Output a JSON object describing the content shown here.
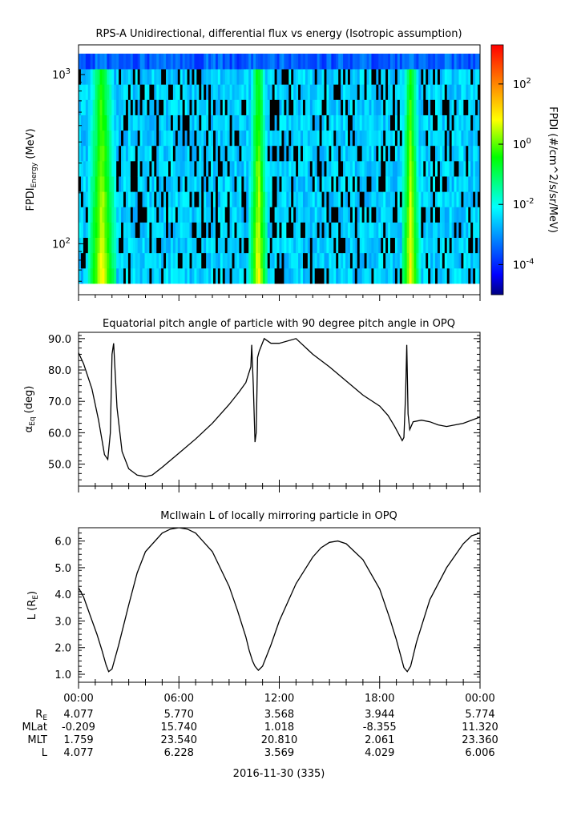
{
  "panel1": {
    "title": "RPS-A Unidirectional, differential flux vs energy (Isotropic assumption)",
    "ylabel_main": "FPDI",
    "ylabel_sub": "Energy",
    "ylabel_unit": "(MeV)",
    "colorbar_label": "FPDI (#/cm^2/s/sr/MeV)"
  },
  "panel2": {
    "title": "Equatorial pitch angle of particle with 90 degree pitch angle in OPQ",
    "ylabel_main": "α",
    "ylabel_sub": "Eq",
    "ylabel_unit": "(deg)"
  },
  "panel3": {
    "title": "McIlwain L of locally mirroring particle in OPQ",
    "ylabel_main": "L (R",
    "ylabel_sub": "E",
    "ylabel_unit": ")"
  },
  "footer": {
    "date_label": "2016-11-30 (335)",
    "row_labels": [
      {
        "main": "R",
        "sub": "E"
      },
      {
        "main": "MLat",
        "sub": ""
      },
      {
        "main": "MLT",
        "sub": ""
      },
      {
        "main": "L",
        "sub": ""
      }
    ],
    "columns": [
      {
        "time": "00:00",
        "values": [
          "4.077",
          "-0.209",
          "1.759",
          "4.077"
        ]
      },
      {
        "time": "06:00",
        "values": [
          "5.770",
          "15.740",
          "23.540",
          "6.228"
        ]
      },
      {
        "time": "12:00",
        "values": [
          "3.568",
          "1.018",
          "20.810",
          "3.569"
        ]
      },
      {
        "time": "18:00",
        "values": [
          "3.944",
          "-8.355",
          "2.061",
          "4.029"
        ]
      },
      {
        "time": "00:00",
        "values": [
          "5.774",
          "11.320",
          "23.360",
          "6.006"
        ]
      }
    ]
  },
  "colors": {
    "colormap": [
      "#000080",
      "#0000ff",
      "#00a0ff",
      "#00ffff",
      "#00ff00",
      "#ffff00",
      "#ff8000",
      "#ff0000"
    ],
    "line": "#000000"
  },
  "chart_data": [
    {
      "type": "heatmap",
      "title": "RPS-A Unidirectional, differential flux vs energy (Isotropic assumption)",
      "xlabel": "",
      "ylabel": "FPDI Energy (MeV)",
      "x_range_hours": [
        0,
        24
      ],
      "ylim": [
        50,
        1500
      ],
      "yscale": "log",
      "yticks": [
        {
          "value": 100,
          "label": "10",
          "exp": "2"
        },
        {
          "value": 1000,
          "label": "10",
          "exp": "3"
        }
      ],
      "energy_bins": 15,
      "high_flux_bands_hours": [
        [
          0.7,
          2.1
        ],
        [
          10.3,
          11.2
        ],
        [
          19.4,
          20.3
        ]
      ],
      "colorbar": {
        "log_min": -5,
        "log_max": 3.3,
        "ticks": [
          {
            "value": -4,
            "label": "10",
            "exp": "-4"
          },
          {
            "value": -2,
            "label": "10",
            "exp": "-2"
          },
          {
            "value": 0,
            "label": "10",
            "exp": "0"
          },
          {
            "value": 2,
            "label": "10",
            "exp": "2"
          }
        ]
      }
    },
    {
      "type": "line",
      "title": "Equatorial pitch angle of particle with 90 degree pitch angle in OPQ",
      "xlabel": "",
      "ylabel": "αEq (deg)",
      "ylim": [
        43,
        92
      ],
      "yticks": [
        50,
        60,
        70,
        80,
        90
      ],
      "x": [
        0,
        0.3,
        0.8,
        1.2,
        1.55,
        1.75,
        1.9,
        2.0,
        2.1,
        2.3,
        2.6,
        3.0,
        3.5,
        4.0,
        4.4,
        5.0,
        6.0,
        7.0,
        8.0,
        9.0,
        9.6,
        10.0,
        10.3,
        10.35,
        10.45,
        10.55,
        10.62,
        10.7,
        10.8,
        11.1,
        11.5,
        12.0,
        13.0,
        14.0,
        15.0,
        16.0,
        17.0,
        18.0,
        18.5,
        18.9,
        19.2,
        19.35,
        19.45,
        19.55,
        19.62,
        19.7,
        19.8,
        20.0,
        20.5,
        21.0,
        21.5,
        22.0,
        23.0,
        24.0
      ],
      "series": [
        {
          "values": [
            85.5,
            82,
            74,
            64,
            53,
            51.5,
            60,
            85,
            88.5,
            68,
            54,
            48.5,
            46.5,
            46,
            46.5,
            49,
            53.5,
            58,
            63,
            69,
            73,
            76,
            81,
            88,
            75,
            57,
            60,
            84,
            86,
            90,
            88.5,
            88.5,
            90,
            85,
            81,
            76.5,
            72,
            68.5,
            65.5,
            62,
            59,
            57.5,
            58.5,
            72,
            88,
            66,
            61,
            63.5,
            64,
            63.5,
            62.5,
            62,
            63,
            65
          ]
        }
      ]
    },
    {
      "type": "line",
      "title": "McIlwain L of locally mirroring particle in OPQ",
      "xlabel": "",
      "ylabel": "L (RE)",
      "ylim": [
        0.7,
        6.5
      ],
      "yticks": [
        1.0,
        2.0,
        3.0,
        4.0,
        5.0,
        6.0
      ],
      "x": [
        0,
        0.3,
        0.7,
        1.1,
        1.4,
        1.65,
        1.8,
        2.0,
        2.4,
        3.0,
        3.5,
        4.0,
        5.0,
        5.5,
        6.0,
        6.5,
        7.0,
        8.0,
        9.0,
        9.5,
        10.0,
        10.2,
        10.4,
        10.55,
        10.75,
        11.0,
        11.5,
        12.0,
        13.0,
        14.0,
        14.5,
        15.0,
        15.5,
        16.0,
        17.0,
        18.0,
        18.6,
        19.0,
        19.3,
        19.45,
        19.65,
        19.85,
        20.2,
        20.7,
        21.0,
        22.0,
        23.0,
        23.5,
        24.0
      ],
      "series": [
        {
          "values": [
            4.25,
            3.9,
            3.2,
            2.5,
            1.9,
            1.35,
            1.1,
            1.2,
            2.1,
            3.6,
            4.8,
            5.6,
            6.3,
            6.45,
            6.5,
            6.45,
            6.3,
            5.6,
            4.3,
            3.4,
            2.4,
            1.9,
            1.5,
            1.3,
            1.15,
            1.3,
            2.1,
            3.0,
            4.4,
            5.4,
            5.75,
            5.95,
            6.0,
            5.9,
            5.3,
            4.2,
            3.1,
            2.3,
            1.6,
            1.25,
            1.1,
            1.3,
            2.2,
            3.2,
            3.8,
            5.0,
            5.9,
            6.2,
            6.3
          ]
        }
      ]
    }
  ]
}
